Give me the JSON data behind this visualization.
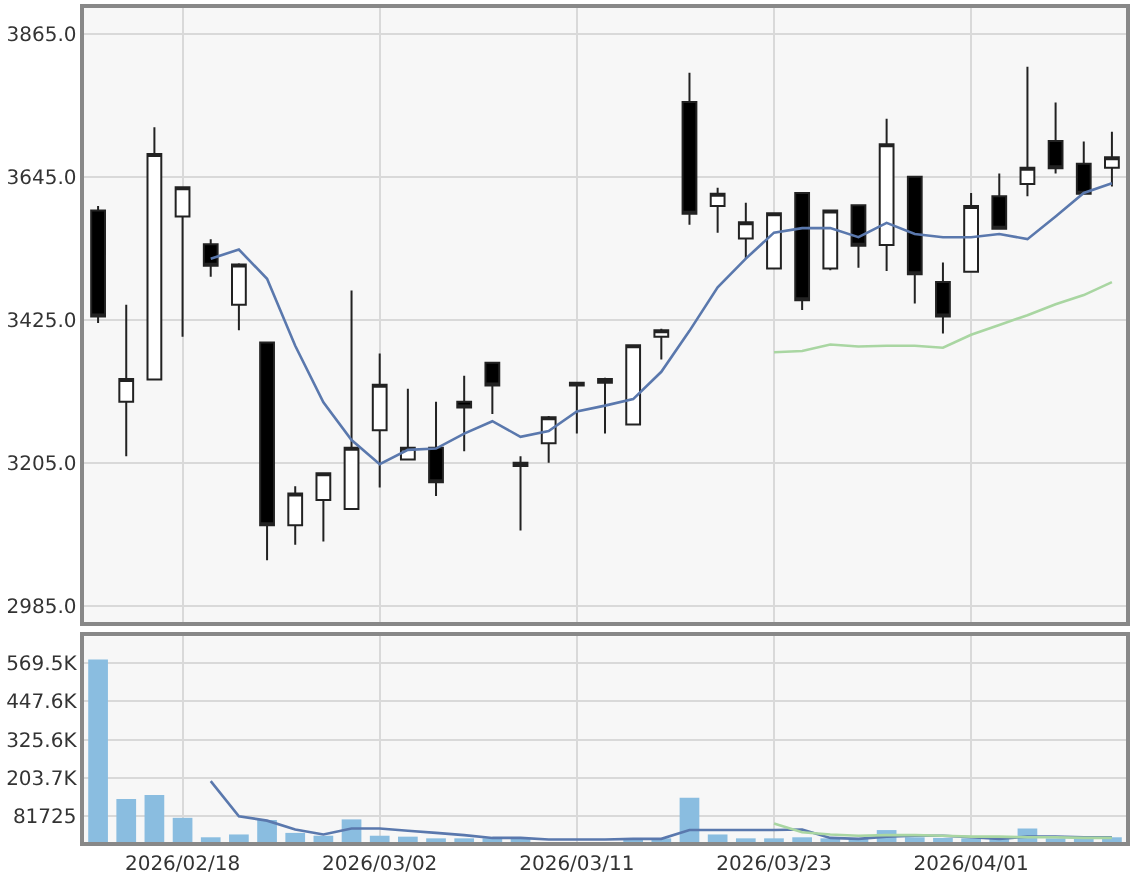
{
  "chart_data": [
    {
      "type": "candlestick",
      "categories": [
        null,
        null,
        null,
        "2026/02/18",
        null,
        null,
        null,
        null,
        null,
        null,
        "2026/03/02",
        null,
        null,
        null,
        null,
        null,
        null,
        "2026/03/11",
        null,
        null,
        null,
        null,
        null,
        null,
        "2026/03/23",
        null,
        null,
        null,
        null,
        null,
        null,
        "2026/04/01",
        null,
        null,
        null,
        null,
        null
      ],
      "ohlc": [
        [
          3593,
          3600,
          3420,
          3430
        ],
        [
          3299,
          3448,
          3215,
          3334
        ],
        [
          3333,
          3721,
          3333,
          3680
        ],
        [
          3584,
          3629,
          3399,
          3629
        ],
        [
          3541,
          3549,
          3491,
          3508
        ],
        [
          3448,
          3512,
          3409,
          3510
        ],
        [
          3390,
          3390,
          3055,
          3109
        ],
        [
          3109,
          3169,
          3079,
          3158
        ],
        [
          3148,
          3189,
          3084,
          3189
        ],
        [
          3134,
          3470,
          3134,
          3228
        ],
        [
          3255,
          3373,
          3167,
          3325
        ],
        [
          3210,
          3319,
          3210,
          3228
        ],
        [
          3228,
          3299,
          3154,
          3175
        ],
        [
          3299,
          3339,
          3223,
          3290
        ],
        [
          3359,
          3359,
          3280,
          3324
        ],
        [
          3200,
          3215,
          3101,
          3205
        ],
        [
          3235,
          3277,
          3205,
          3275
        ],
        [
          3328,
          3328,
          3250,
          3324
        ],
        [
          3328,
          3336,
          3250,
          3334
        ],
        [
          3264,
          3386,
          3264,
          3386
        ],
        [
          3399,
          3411,
          3364,
          3409
        ],
        [
          3760,
          3805,
          3571,
          3588
        ],
        [
          3600,
          3628,
          3559,
          3619
        ],
        [
          3550,
          3605,
          3519,
          3575
        ],
        [
          3504,
          3589,
          3504,
          3589
        ],
        [
          3620,
          3620,
          3440,
          3455
        ],
        [
          3504,
          3593,
          3501,
          3593
        ],
        [
          3601,
          3601,
          3505,
          3539
        ],
        [
          3540,
          3734,
          3500,
          3695
        ],
        [
          3645,
          3645,
          3450,
          3495
        ],
        [
          3483,
          3513,
          3404,
          3430
        ],
        [
          3499,
          3620,
          3499,
          3600
        ],
        [
          3615,
          3650,
          3565,
          3565
        ],
        [
          3634,
          3814,
          3615,
          3659
        ],
        [
          3700,
          3759,
          3650,
          3658
        ],
        [
          3665,
          3699,
          3619,
          3619
        ],
        [
          3659,
          3714,
          3630,
          3675
        ]
      ],
      "series": [
        {
          "type": "line",
          "color": "#5a78ad",
          "values": [
            null,
            null,
            null,
            null,
            3519,
            3533,
            3488,
            3385,
            3298,
            3240,
            3203,
            3225,
            3227,
            3250,
            3269,
            3245,
            3254,
            3284,
            3293,
            3303,
            3345,
            3408,
            3475,
            3519,
            3559,
            3566,
            3566,
            3552,
            3574,
            3557,
            3552,
            3552,
            3557,
            3549,
            3584,
            3620,
            3635
          ]
        },
        {
          "type": "line",
          "color": "#a9d6a2",
          "values": [
            null,
            null,
            null,
            null,
            null,
            null,
            null,
            null,
            null,
            null,
            null,
            null,
            null,
            null,
            null,
            null,
            null,
            null,
            null,
            null,
            null,
            null,
            null,
            null,
            3375,
            3377,
            3387,
            3384,
            3385,
            3385,
            3382,
            3402,
            3417,
            3432,
            3449,
            3463,
            3483
          ]
        }
      ],
      "ylim": [
        2960,
        3905
      ],
      "yticks": [
        {
          "value": 2985,
          "label": "2985.0"
        },
        {
          "value": 3205,
          "label": "3205.0"
        },
        {
          "value": 3425,
          "label": "3425.0"
        },
        {
          "value": 3645,
          "label": "3645.0"
        },
        {
          "value": 3865,
          "label": "3865.0"
        }
      ],
      "grid": true,
      "tick_labels": "y"
    },
    {
      "type": "bar",
      "categories": [
        null,
        null,
        null,
        "2026/02/18",
        null,
        null,
        null,
        null,
        null,
        null,
        "2026/03/02",
        null,
        null,
        null,
        null,
        null,
        null,
        "2026/03/11",
        null,
        null,
        null,
        null,
        null,
        null,
        "2026/03/23",
        null,
        null,
        null,
        null,
        null,
        null,
        "2026/04/01",
        null,
        null,
        null,
        null,
        null
      ],
      "series": [
        {
          "type": "bar",
          "color": "#8abde0",
          "values": [
            581000,
            137000,
            150000,
            77000,
            15000,
            24000,
            70000,
            29000,
            20000,
            72000,
            20000,
            17000,
            10000,
            10000,
            10000,
            8000,
            null,
            null,
            null,
            8000,
            10000,
            141000,
            24000,
            10000,
            10000,
            15000,
            8000,
            10000,
            38000,
            15000,
            13000,
            10000,
            10000,
            43000,
            8000,
            8000,
            15000
          ]
        },
        {
          "type": "line",
          "color": "#5a78ad",
          "values": [
            null,
            null,
            null,
            null,
            194000,
            82000,
            68000,
            40000,
            24000,
            43000,
            43000,
            36000,
            29000,
            22000,
            13000,
            13000,
            8000,
            8000,
            8000,
            10000,
            10000,
            38000,
            38000,
            38000,
            38000,
            40000,
            13000,
            10000,
            17000,
            20000,
            20000,
            15000,
            10000,
            17000,
            17000,
            15000,
            15000
          ]
        },
        {
          "type": "line",
          "color": "#a9d6a2",
          "values": [
            null,
            null,
            null,
            null,
            null,
            null,
            null,
            null,
            null,
            null,
            null,
            null,
            null,
            null,
            null,
            null,
            null,
            null,
            null,
            null,
            null,
            null,
            null,
            null,
            59000,
            31000,
            24000,
            20000,
            22000,
            22000,
            20000,
            17000,
            17000,
            15000,
            15000,
            13000,
            13000
          ]
        }
      ],
      "ylim": [
        0,
        655000
      ],
      "yticks": [
        {
          "value": 81725,
          "label": "81725"
        },
        {
          "value": 203675,
          "label": "203.7K"
        },
        {
          "value": 325625,
          "label": "325.6K"
        },
        {
          "value": 447575,
          "label": "447.6K"
        },
        {
          "value": 569525,
          "label": "569.5K"
        }
      ],
      "grid": true
    }
  ]
}
